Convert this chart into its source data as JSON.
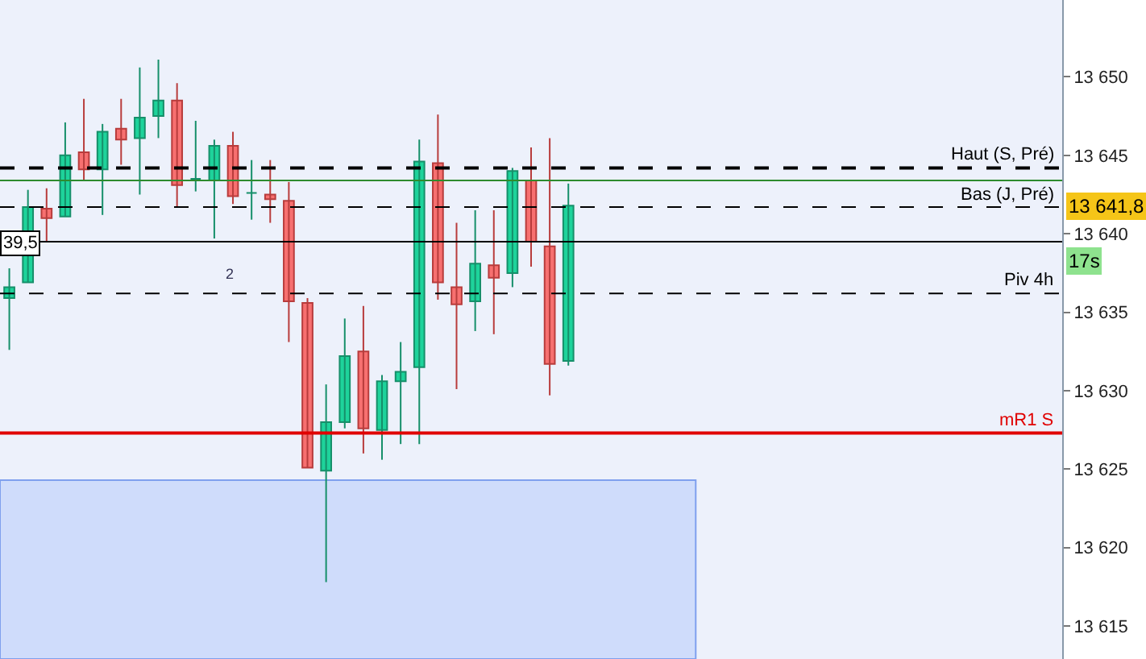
{
  "chart_data": {
    "type": "candlestick",
    "categories": [
      null,
      null,
      null,
      null,
      null,
      null,
      null,
      null,
      null,
      null,
      null,
      null,
      null,
      null,
      null,
      null,
      null,
      null,
      null,
      null,
      null,
      null,
      null,
      null,
      null,
      null,
      null,
      null,
      null,
      null,
      null,
      null,
      null,
      null,
      null,
      null,
      null,
      null,
      null,
      null,
      null,
      null,
      null,
      null,
      null,
      null,
      null,
      null,
      null,
      null,
      null,
      null,
      null,
      null,
      null,
      null,
      null
    ],
    "ohlc": [
      [
        13635.9,
        13637.8,
        13632.6,
        13636.6
      ],
      [
        13636.9,
        13642.8,
        13636.9,
        13641.7
      ],
      [
        13641.6,
        13642.9,
        13639.5,
        13641.0
      ],
      [
        13641.1,
        13647.1,
        13641.1,
        13645.0
      ],
      [
        13645.2,
        13648.6,
        13643.4,
        13644.1
      ],
      [
        13644.1,
        13647.0,
        13641.2,
        13646.5
      ],
      [
        13646.7,
        13648.6,
        13644.4,
        13646.0
      ],
      [
        13646.1,
        13650.6,
        13642.5,
        13647.4
      ],
      [
        13647.5,
        13651.1,
        13646.1,
        13648.5
      ],
      [
        13648.5,
        13649.6,
        13641.7,
        13643.1
      ],
      [
        13643.5,
        13647.2,
        13642.7,
        13643.5
      ],
      [
        13643.4,
        13646.0,
        13639.7,
        13645.6
      ],
      [
        13645.6,
        13646.5,
        13641.9,
        13642.4
      ],
      [
        13642.6,
        13644.7,
        13640.9,
        13642.6
      ],
      [
        13642.5,
        13644.7,
        13640.7,
        13642.2
      ],
      [
        13642.1,
        13643.3,
        13633.1,
        13635.7
      ],
      [
        13635.6,
        13635.9,
        13625.1,
        13625.1
      ],
      [
        13624.9,
        13630.4,
        13617.8,
        13628.0
      ],
      [
        13628.0,
        13634.6,
        13627.6,
        13632.2
      ],
      [
        13632.5,
        13635.4,
        13626.0,
        13627.6
      ],
      [
        13627.5,
        13631.0,
        13625.6,
        13630.6
      ],
      [
        13630.6,
        13633.1,
        13626.6,
        13631.2
      ],
      [
        13631.5,
        13646.0,
        13626.6,
        13644.6
      ],
      [
        13644.5,
        13647.6,
        13635.8,
        13636.9
      ],
      [
        13636.6,
        13640.7,
        13630.1,
        13635.5
      ],
      [
        13635.7,
        13641.5,
        13633.8,
        13638.1
      ],
      [
        13638.0,
        13641.5,
        13633.6,
        13637.2
      ],
      [
        13637.5,
        13644.2,
        13636.6,
        13644.0
      ],
      [
        13643.4,
        13645.5,
        13637.9,
        13639.5
      ],
      [
        13639.2,
        13646.1,
        13629.7,
        13631.7
      ],
      [
        13631.9,
        13643.2,
        13631.6,
        13641.8
      ],
      null,
      null,
      null,
      null,
      null,
      null,
      null,
      null,
      null,
      null,
      null,
      null,
      null,
      null,
      null,
      null,
      null,
      null,
      null,
      null,
      null,
      null,
      null,
      null,
      null,
      null
    ],
    "ylim": [
      13612.9,
      13654.9
    ],
    "yticks": [
      {
        "value": 13615,
        "label": "13 615"
      },
      {
        "value": 13620,
        "label": "13 620"
      },
      {
        "value": 13625,
        "label": "13 625"
      },
      {
        "value": 13630,
        "label": "13 630"
      },
      {
        "value": 13635,
        "label": "13 635"
      },
      {
        "value": 13640,
        "label": "13 640"
      },
      {
        "value": 13645,
        "label": "13 645"
      },
      {
        "value": 13650,
        "label": "13 650"
      }
    ],
    "ref_lines": [
      {
        "axis": "y",
        "value": 13644.2,
        "label": "Haut (S, Pré)",
        "color": "#000000",
        "line_style": "dashed"
      },
      {
        "axis": "y",
        "value": 13643.4,
        "label": null,
        "color": "#2e8b2e",
        "line_style": "solid"
      },
      {
        "axis": "y",
        "value": 13641.7,
        "label": "Bas (J, Pré)",
        "color": "#000000",
        "line_style": "dashed"
      },
      {
        "axis": "y",
        "value": 13639.5,
        "label": null,
        "color": "#000000",
        "line_style": "solid"
      },
      {
        "axis": "y",
        "value": 13636.2,
        "label": "Piv 4h",
        "color": "#000000",
        "line_style": "dashed"
      },
      {
        "axis": "y",
        "value": 13627.3,
        "label": "mR1 S",
        "color": "#e00000",
        "line_style": "solid"
      }
    ],
    "bands": [
      {
        "axis": "y",
        "from": 13612.9,
        "to": 13624.3,
        "color": "#cfdcfb"
      }
    ],
    "annotations": [
      "13 641,8",
      "17s",
      "2",
      "39,5"
    ],
    "grid": false,
    "legend": false,
    "tick_labels": "y"
  }
}
